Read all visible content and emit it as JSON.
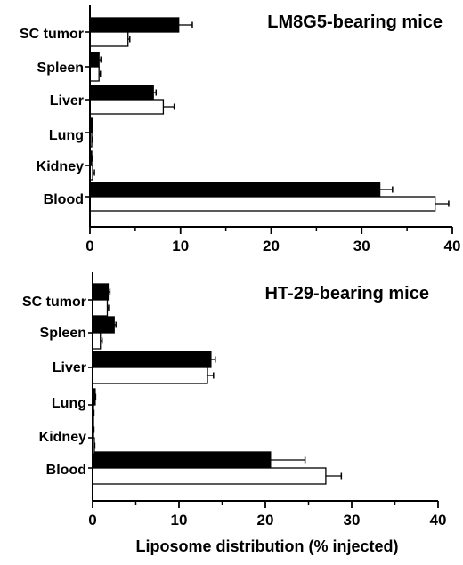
{
  "chart_data": [
    {
      "type": "bar",
      "orientation": "horizontal",
      "title": "LM8G5-bearing mice",
      "categories": [
        "SC tumor",
        "Spleen",
        "Liver",
        "Lung",
        "Kidney",
        "Blood"
      ],
      "series": [
        {
          "fill": "#000000",
          "values": [
            9.8,
            1.0,
            7.0,
            0.25,
            0.2,
            32.0
          ],
          "errors": [
            1.5,
            0.2,
            0.3,
            0.05,
            0.05,
            1.4
          ]
        },
        {
          "fill": "#ffffff",
          "values": [
            4.2,
            1.0,
            8.1,
            0.2,
            0.3,
            38.1
          ],
          "errors": [
            0.2,
            0.15,
            1.2,
            0.05,
            0.2,
            1.5
          ]
        }
      ],
      "xlim": [
        0,
        40
      ],
      "xticks": [
        0,
        10,
        20,
        30,
        40
      ],
      "xlabel": "",
      "grid": false
    },
    {
      "type": "bar",
      "orientation": "horizontal",
      "title": "HT-29-bearing mice",
      "categories": [
        "SC tumor",
        "Spleen",
        "Liver",
        "Lung",
        "Kidney",
        "Blood"
      ],
      "series": [
        {
          "fill": "#000000",
          "values": [
            1.8,
            2.5,
            13.7,
            0.3,
            0.1,
            20.6
          ],
          "errors": [
            0.2,
            0.2,
            0.5,
            0.05,
            0.05,
            4.0
          ]
        },
        {
          "fill": "#ffffff",
          "values": [
            1.7,
            0.9,
            13.3,
            0.1,
            0.2,
            27.0
          ],
          "errors": [
            0.15,
            0.2,
            0.7,
            0.05,
            0.05,
            1.8
          ]
        }
      ],
      "xlim": [
        0,
        40
      ],
      "xticks": [
        0,
        10,
        20,
        30,
        40
      ],
      "xlabel": "Liposome distribution (% injected)",
      "grid": false
    }
  ]
}
